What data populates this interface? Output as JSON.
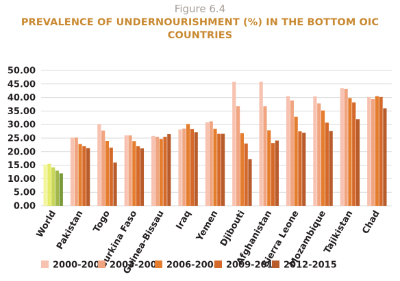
{
  "figure_label": "Figure 6.4",
  "title": "PREVALENCE OF UNDERNOURISHMENT (%) IN THE BOTTOM OIC COUNTRIES",
  "colors": {
    "title": "#c98a33",
    "figure_label": "#a69f96",
    "gridline": "#d9d9d9",
    "series": [
      "#f7c2b0",
      "#f0a480",
      "#e57d2e",
      "#d4692a",
      "#b85c2b"
    ],
    "world_series": [
      "#f2f59c",
      "#e6ec6a",
      "#c9d65a",
      "#a3b84a",
      "#7a9a3a"
    ]
  },
  "chart_data": {
    "type": "bar",
    "categories": [
      "World",
      "Pakistan",
      "Togo",
      "Burkina Faso",
      "Guinea-Bissau",
      "Iraq",
      "Yemen",
      "Djibouti",
      "Afghanistan",
      "Sierra Leone",
      "Mozambique",
      "Tajikistan",
      "Chad"
    ],
    "series": [
      {
        "name": "2000-2002",
        "values": [
          15.2,
          25.2,
          30.2,
          26.0,
          25.8,
          28.2,
          30.8,
          45.8,
          45.8,
          40.5,
          40.4,
          43.4,
          40.2
        ]
      },
      {
        "name": "2003-2005",
        "values": [
          15.5,
          25.2,
          27.8,
          26.0,
          25.5,
          28.5,
          31.2,
          36.8,
          36.8,
          38.9,
          37.8,
          43.2,
          39.4
        ]
      },
      {
        "name": "2006-2008",
        "values": [
          14.2,
          22.8,
          24.0,
          23.9,
          24.7,
          30.2,
          28.4,
          26.8,
          27.9,
          32.9,
          35.2,
          39.8,
          40.5
        ]
      },
      {
        "name": "2009-2011",
        "values": [
          13.0,
          22.0,
          21.5,
          22.0,
          25.5,
          28.3,
          26.6,
          23.0,
          23.2,
          27.5,
          30.7,
          38.2,
          40.2
        ]
      },
      {
        "name": "2012-2015",
        "values": [
          12.0,
          21.3,
          16.0,
          21.2,
          26.5,
          27.2,
          26.6,
          17.2,
          24.1,
          27.0,
          27.6,
          32.0,
          36.0
        ]
      }
    ],
    "yticks": [
      "50.00",
      "45.00",
      "40.00",
      "35.00",
      "30.00",
      "25.00",
      "20.00",
      "15.00",
      "10.00",
      "5.00",
      "0.00"
    ],
    "ylim": [
      0,
      50
    ],
    "grid": true,
    "legend_position": "bottom"
  }
}
